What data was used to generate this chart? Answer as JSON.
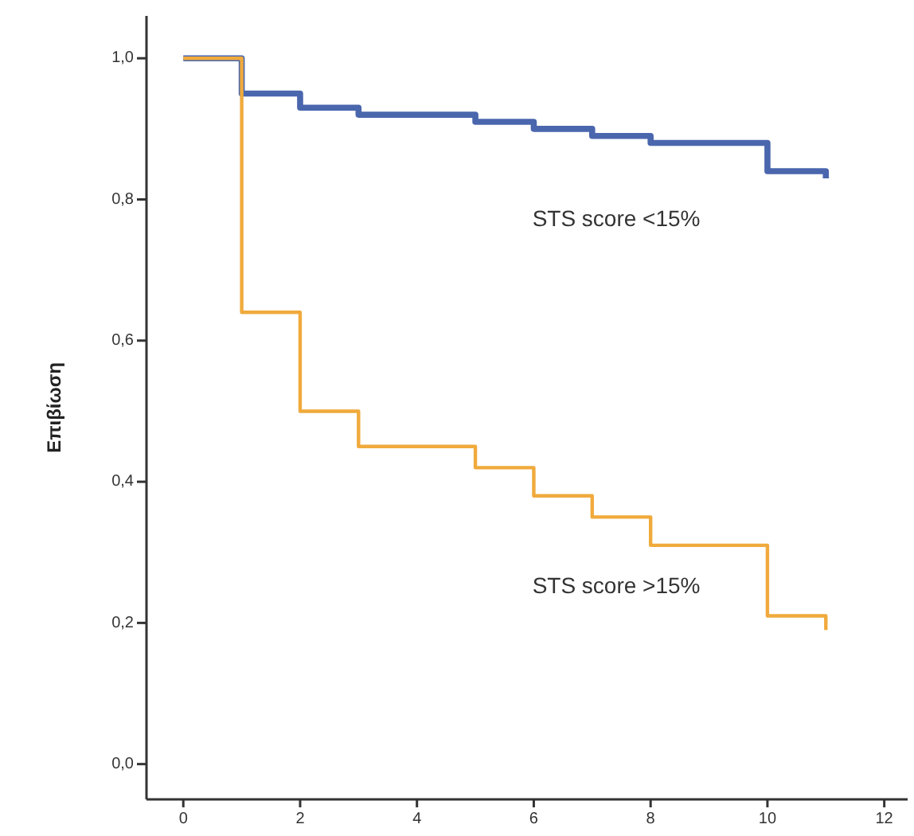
{
  "chart_data": {
    "type": "step",
    "ylabel": "Επιβίωση",
    "x": [
      0,
      1,
      2,
      3,
      5,
      6,
      7,
      8,
      10,
      11
    ],
    "series": [
      {
        "name": "STS score <15%",
        "color": "#4a66ad",
        "values": [
          1,
          0.95,
          0.93,
          0.92,
          0.91,
          0.9,
          0.89,
          0.88,
          0.84,
          0.83
        ]
      },
      {
        "name": "STS score >15%",
        "color": "#f0aa3c",
        "values": [
          1,
          0.64,
          0.5,
          0.45,
          0.42,
          0.38,
          0.35,
          0.31,
          0.21,
          0.19
        ]
      }
    ],
    "xlim": [
      -0.63,
      12.4
    ],
    "xticks": [
      0,
      2,
      4,
      6,
      8,
      10,
      12
    ],
    "ylim": [
      -0.05,
      1.06
    ],
    "yticks": [
      {
        "value": 0,
        "label": "0,0"
      },
      {
        "value": 0.2,
        "label": "0,2"
      },
      {
        "value": 0.4,
        "label": "0,4"
      },
      {
        "value": 0.6,
        "label": "0,6"
      },
      {
        "value": 0.8,
        "label": "0,8"
      },
      {
        "value": 1,
        "label": "1,0"
      }
    ],
    "grid": false,
    "legend": false,
    "marker": "none",
    "line_style": "solid"
  }
}
